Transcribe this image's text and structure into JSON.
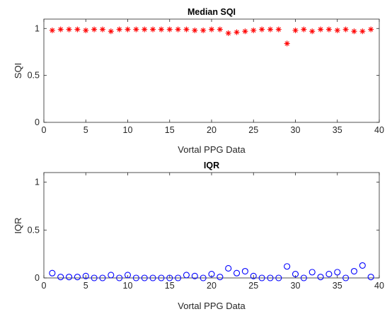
{
  "chart_data": [
    {
      "type": "scatter",
      "title": "Median SQI",
      "xlabel": "Vortal PPG Data",
      "ylabel": "SQI",
      "xlim": [
        0,
        40
      ],
      "ylim": [
        0,
        1.1
      ],
      "xticks": [
        0,
        5,
        10,
        15,
        20,
        25,
        30,
        35,
        40
      ],
      "yticks": [
        0,
        0.5,
        1
      ],
      "ytick_labels": [
        "0",
        "0.5",
        "1"
      ],
      "grid": false,
      "series": [
        {
          "marker": "asterisk",
          "color": "#ff0000",
          "x": [
            1,
            2,
            3,
            4,
            5,
            6,
            7,
            8,
            9,
            10,
            11,
            12,
            13,
            14,
            15,
            16,
            17,
            18,
            19,
            20,
            21,
            22,
            23,
            24,
            25,
            26,
            27,
            28,
            29,
            30,
            31,
            32,
            33,
            34,
            35,
            36,
            37,
            38,
            39
          ],
          "y": [
            0.98,
            0.99,
            0.99,
            0.99,
            0.98,
            0.99,
            0.99,
            0.97,
            0.99,
            0.99,
            0.99,
            0.99,
            0.99,
            0.99,
            0.99,
            0.99,
            0.99,
            0.98,
            0.98,
            0.99,
            0.99,
            0.95,
            0.96,
            0.97,
            0.98,
            0.99,
            0.99,
            0.99,
            0.84,
            0.98,
            0.99,
            0.97,
            0.99,
            0.99,
            0.98,
            0.99,
            0.97,
            0.97,
            0.99
          ]
        }
      ]
    },
    {
      "type": "scatter",
      "title": "IQR",
      "xlabel": "Vortal PPG Data",
      "ylabel": "IQR",
      "xlim": [
        0,
        40
      ],
      "ylim": [
        0,
        1.1
      ],
      "xticks": [
        0,
        5,
        10,
        15,
        20,
        25,
        30,
        35,
        40
      ],
      "yticks": [
        0,
        0.5,
        1
      ],
      "ytick_labels": [
        "0",
        "0.5",
        "1"
      ],
      "grid": false,
      "series": [
        {
          "marker": "circle",
          "color": "#0000ff",
          "x": [
            1,
            2,
            3,
            4,
            5,
            6,
            7,
            8,
            9,
            10,
            11,
            12,
            13,
            14,
            15,
            16,
            17,
            18,
            19,
            20,
            21,
            22,
            23,
            24,
            25,
            26,
            27,
            28,
            29,
            30,
            31,
            32,
            33,
            34,
            35,
            36,
            37,
            38,
            39
          ],
          "y": [
            0.05,
            0.01,
            0.01,
            0.01,
            0.02,
            0.0,
            0.0,
            0.03,
            0.0,
            0.03,
            0.0,
            0.0,
            0.0,
            0.0,
            0.0,
            0.0,
            0.03,
            0.02,
            0.0,
            0.04,
            0.01,
            0.1,
            0.05,
            0.07,
            0.02,
            0.0,
            0.0,
            0.0,
            0.12,
            0.04,
            0.0,
            0.06,
            0.01,
            0.04,
            0.06,
            0.0,
            0.07,
            0.13,
            0.01
          ]
        }
      ]
    }
  ]
}
